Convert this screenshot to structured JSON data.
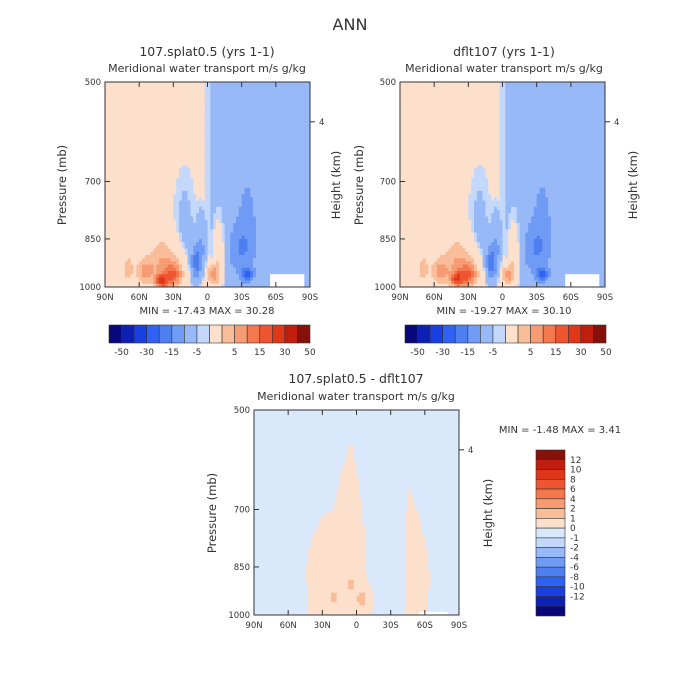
{
  "figure": {
    "title": "ANN"
  },
  "colors": {
    "diverging_main": [
      "#08087a",
      "#0d22b4",
      "#1a3fe0",
      "#2f62f0",
      "#4d7ff0",
      "#6f9bf5",
      "#98b9f7",
      "#c3d8fb",
      "#fde0cc",
      "#f9bd9a",
      "#f79b72",
      "#f4784e",
      "#ee5530",
      "#e0371b",
      "#c11e10",
      "#86100a"
    ],
    "diverging_diff": [
      "#08087a",
      "#0d22b4",
      "#1a3fe0",
      "#2f62f0",
      "#4d7ff0",
      "#6f9bf5",
      "#98b9f7",
      "#c3d8fb",
      "#dae8fc",
      "#fde0cc",
      "#f9bd9a",
      "#f79b72",
      "#f4784e",
      "#ee5530",
      "#e0371b",
      "#c11e10",
      "#86100a"
    ],
    "axis": "#333333"
  },
  "chart_data": [
    {
      "type": "heatmap",
      "title": "107.splat0.5 (yrs 1-1)",
      "subtitle": "Meridional water transport m/s g/kg",
      "xlabel": "",
      "ylabel": "Pressure (mb)",
      "y2label": "Height (km)",
      "x_ticks": [
        "90N",
        "60N",
        "30N",
        "0",
        "30S",
        "60S",
        "90S"
      ],
      "y_ticks": [
        "500",
        "700",
        "850",
        "1000"
      ],
      "y2_ticks": [
        "4"
      ],
      "stats": "MIN = -17.43   MAX =  30.28",
      "colorbar_labels": [
        "-50",
        "-30",
        "-15",
        "-5",
        "5",
        "15",
        "30",
        "50"
      ],
      "colorbar_levels": [
        -50,
        -40,
        -30,
        -20,
        -15,
        -10,
        -5,
        -1,
        1,
        5,
        10,
        15,
        20,
        30,
        40,
        50
      ],
      "field": [
        {
          "lat": 40,
          "p": 980,
          "v": 28,
          "sx": 5,
          "sy": 2
        },
        {
          "lat": 30,
          "p": 960,
          "v": 18,
          "sx": 8,
          "sy": 4
        },
        {
          "lat": 40,
          "p": 920,
          "v": 10,
          "sx": 12,
          "sy": 7
        },
        {
          "lat": 10,
          "p": 920,
          "v": -12,
          "sx": 4,
          "sy": 5
        },
        {
          "lat": 5,
          "p": 870,
          "v": -5,
          "sx": 4,
          "sy": 8
        },
        {
          "lat": 55,
          "p": 950,
          "v": 12,
          "sx": 7,
          "sy": 4
        },
        {
          "lat": 70,
          "p": 940,
          "v": 7,
          "sx": 6,
          "sy": 5
        },
        {
          "lat": -5,
          "p": 960,
          "v": 14,
          "sx": 5,
          "sy": 3
        },
        {
          "lat": -10,
          "p": 900,
          "v": 6,
          "sx": 5,
          "sy": 9
        },
        {
          "lat": -35,
          "p": 960,
          "v": -15,
          "sx": 5,
          "sy": 2
        },
        {
          "lat": -30,
          "p": 880,
          "v": -8,
          "sx": 12,
          "sy": 8
        },
        {
          "lat": -35,
          "p": 760,
          "v": -4,
          "sx": 10,
          "sy": 12
        },
        {
          "lat": 20,
          "p": 820,
          "v": -1.5,
          "sx": 10,
          "sy": 15
        }
      ]
    },
    {
      "type": "heatmap",
      "title": "dflt107 (yrs 1-1)",
      "subtitle": "Meridional water transport m/s g/kg",
      "xlabel": "",
      "ylabel": "Pressure (mb)",
      "y2label": "Height (km)",
      "x_ticks": [
        "90N",
        "60N",
        "30N",
        "0",
        "30S",
        "60S",
        "90S"
      ],
      "y_ticks": [
        "500",
        "700",
        "850",
        "1000"
      ],
      "y2_ticks": [
        "4"
      ],
      "stats": "MIN = -19.27   MAX =  30.10",
      "colorbar_labels": [
        "-50",
        "-30",
        "-15",
        "-5",
        "5",
        "15",
        "30",
        "50"
      ],
      "colorbar_levels": [
        -50,
        -40,
        -30,
        -20,
        -15,
        -10,
        -5,
        -1,
        1,
        5,
        10,
        15,
        20,
        30,
        40,
        50
      ],
      "field": [
        {
          "lat": 40,
          "p": 975,
          "v": 28,
          "sx": 5,
          "sy": 2
        },
        {
          "lat": 30,
          "p": 960,
          "v": 18,
          "sx": 8,
          "sy": 4
        },
        {
          "lat": 40,
          "p": 920,
          "v": 10,
          "sx": 12,
          "sy": 7
        },
        {
          "lat": 10,
          "p": 920,
          "v": -13,
          "sx": 4,
          "sy": 5
        },
        {
          "lat": 5,
          "p": 870,
          "v": -5,
          "sx": 4,
          "sy": 8
        },
        {
          "lat": 55,
          "p": 950,
          "v": 11,
          "sx": 7,
          "sy": 4
        },
        {
          "lat": 70,
          "p": 940,
          "v": 7,
          "sx": 6,
          "sy": 5
        },
        {
          "lat": -5,
          "p": 960,
          "v": 13,
          "sx": 5,
          "sy": 3
        },
        {
          "lat": -10,
          "p": 900,
          "v": 6,
          "sx": 5,
          "sy": 9
        },
        {
          "lat": -35,
          "p": 960,
          "v": -16,
          "sx": 5,
          "sy": 2
        },
        {
          "lat": -30,
          "p": 880,
          "v": -8,
          "sx": 12,
          "sy": 8
        },
        {
          "lat": -35,
          "p": 760,
          "v": -4,
          "sx": 10,
          "sy": 12
        },
        {
          "lat": 20,
          "p": 820,
          "v": -1.5,
          "sx": 10,
          "sy": 15
        }
      ]
    },
    {
      "type": "heatmap",
      "title": "107.splat0.5 - dflt107",
      "subtitle": "Meridional water transport m/s g/kg",
      "xlabel": "",
      "ylabel": "Pressure (mb)",
      "y2label": "Height (km)",
      "x_ticks": [
        "90N",
        "60N",
        "30N",
        "0",
        "30S",
        "60S",
        "90S"
      ],
      "y_ticks": [
        "500",
        "700",
        "850",
        "1000"
      ],
      "y2_ticks": [
        "4"
      ],
      "stats": "MIN =   -1.48   MAX =   3.41",
      "colorbar_labels": [
        "12",
        "10",
        "8",
        "6",
        "4",
        "2",
        "1",
        "0",
        "-1",
        "-2",
        "-4",
        "-6",
        "-8",
        "-10",
        "-12"
      ],
      "colorbar_levels": [
        -12,
        -10,
        -8,
        -6,
        -4,
        -2,
        -1,
        0,
        1,
        2,
        4,
        6,
        8,
        10,
        12
      ],
      "field": [
        {
          "lat": 20,
          "p": 940,
          "v": 2.5,
          "sx": 7,
          "sy": 4
        },
        {
          "lat": 5,
          "p": 900,
          "v": 2.2,
          "sx": 6,
          "sy": 6
        },
        {
          "lat": -5,
          "p": 950,
          "v": 3,
          "sx": 5,
          "sy": 3
        },
        {
          "lat": 35,
          "p": 900,
          "v": 1.5,
          "sx": 6,
          "sy": 6
        },
        {
          "lat": 60,
          "p": 780,
          "v": -0.9,
          "sx": 10,
          "sy": 15
        },
        {
          "lat": 50,
          "p": 940,
          "v": -0.8,
          "sx": 6,
          "sy": 5
        },
        {
          "lat": -25,
          "p": 900,
          "v": -0.7,
          "sx": 8,
          "sy": 8
        },
        {
          "lat": -70,
          "p": 700,
          "v": -0.6,
          "sx": 6,
          "sy": 25
        },
        {
          "lat": 80,
          "p": 600,
          "v": -0.6,
          "sx": 4,
          "sy": 20
        },
        {
          "lat": -55,
          "p": 880,
          "v": 1.2,
          "sx": 6,
          "sy": 6
        }
      ]
    }
  ]
}
